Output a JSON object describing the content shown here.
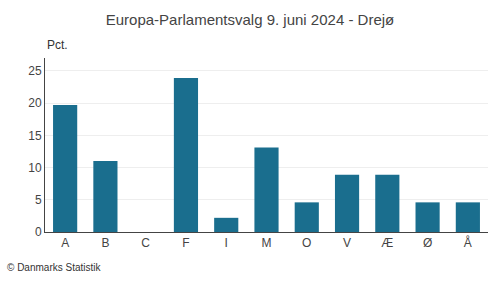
{
  "chart_data": {
    "type": "bar",
    "title": "Europa-Parlamentsvalg 9. juni 2024 - Drejø",
    "categories": [
      "A",
      "B",
      "C",
      "F",
      "I",
      "M",
      "O",
      "V",
      "Æ",
      "Ø",
      "Å"
    ],
    "values": [
      19.7,
      11.0,
      0.0,
      23.9,
      2.2,
      13.1,
      4.6,
      8.9,
      8.9,
      4.6,
      4.6
    ],
    "color": "#1a6e8e",
    "ylabel": "Pct.",
    "ylim": [
      0,
      27
    ],
    "yticks": [
      0,
      5,
      10,
      15,
      20,
      25
    ],
    "grid": true,
    "annotations": [
      "© Danmarks Statistik"
    ]
  }
}
